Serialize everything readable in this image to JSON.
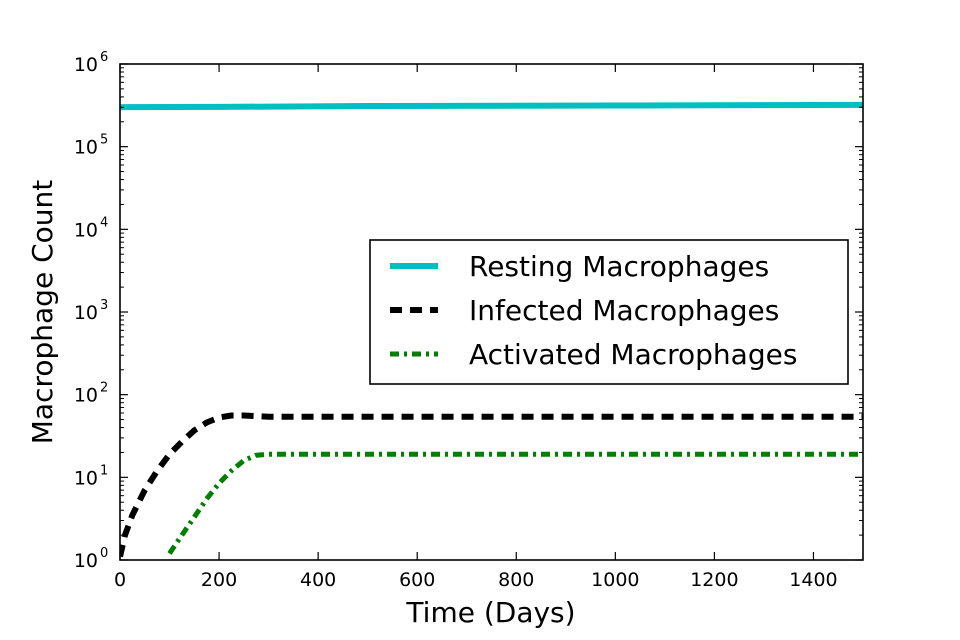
{
  "chart_data": {
    "type": "line",
    "xlabel": "Time (Days)",
    "ylabel": "Macrophage Count",
    "xlim": [
      0,
      1500
    ],
    "ylim": [
      1,
      1000000
    ],
    "yscale": "log",
    "x_ticks": [
      0,
      200,
      400,
      600,
      800,
      1000,
      1200,
      1400
    ],
    "y_ticks": [
      {
        "value": 1,
        "base": "10",
        "exp": "0"
      },
      {
        "value": 10,
        "base": "10",
        "exp": "1"
      },
      {
        "value": 100,
        "base": "10",
        "exp": "2"
      },
      {
        "value": 1000,
        "base": "10",
        "exp": "3"
      },
      {
        "value": 10000,
        "base": "10",
        "exp": "4"
      },
      {
        "value": 100000,
        "base": "10",
        "exp": "5"
      },
      {
        "value": 1000000,
        "base": "10",
        "exp": "6"
      }
    ],
    "grid": false,
    "legend_position": "center-right",
    "series": [
      {
        "name": "Resting Macrophages",
        "color": "#00bfbf",
        "style": "solid",
        "points": [
          [
            0,
            300000
          ],
          [
            200,
            303000
          ],
          [
            500,
            310000
          ],
          [
            1000,
            315000
          ],
          [
            1500,
            320000
          ]
        ]
      },
      {
        "name": "Infected Macrophages",
        "color": "#000000",
        "style": "dashed",
        "points": [
          [
            0,
            1.1
          ],
          [
            10,
            2
          ],
          [
            25,
            3.5
          ],
          [
            50,
            7
          ],
          [
            75,
            12
          ],
          [
            100,
            19
          ],
          [
            125,
            27
          ],
          [
            150,
            37
          ],
          [
            175,
            46
          ],
          [
            200,
            53
          ],
          [
            225,
            56
          ],
          [
            250,
            56
          ],
          [
            275,
            55
          ],
          [
            300,
            54
          ],
          [
            400,
            54
          ],
          [
            600,
            54
          ],
          [
            800,
            54
          ],
          [
            1000,
            54
          ],
          [
            1200,
            54
          ],
          [
            1500,
            54
          ]
        ]
      },
      {
        "name": "Activated Macrophages",
        "color": "#007f00",
        "style": "dashdot",
        "points": [
          [
            100,
            1.2
          ],
          [
            125,
            2
          ],
          [
            150,
            3.3
          ],
          [
            175,
            5.5
          ],
          [
            200,
            8.5
          ],
          [
            225,
            12
          ],
          [
            250,
            16
          ],
          [
            275,
            18.5
          ],
          [
            300,
            19
          ],
          [
            400,
            19
          ],
          [
            600,
            19
          ],
          [
            800,
            19
          ],
          [
            1000,
            19
          ],
          [
            1200,
            19
          ],
          [
            1500,
            19
          ]
        ]
      }
    ]
  }
}
